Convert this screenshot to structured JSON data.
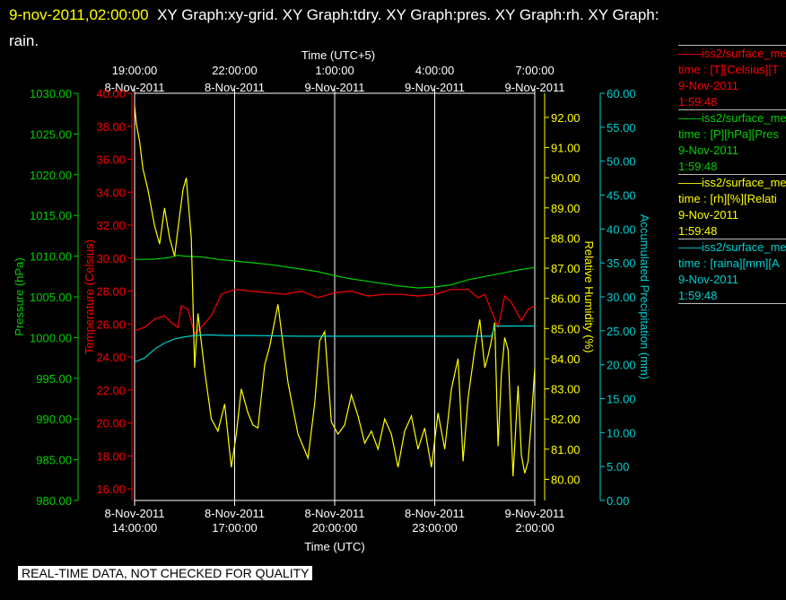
{
  "header": {
    "timestamp": "9-nov-2011,02:00:00",
    "titles": "XY Graph:xy-grid.  XY Graph:tdry.  XY Graph:pres.  XY Graph:rh.  XY Graph:",
    "titles_cont": "rain."
  },
  "colors": {
    "background": "#000000",
    "frame": "#ffffff",
    "temperature": "#ff0000",
    "pressure": "#00d000",
    "humidity": "#ffff00",
    "precip": "#00d0d0"
  },
  "chart_data": {
    "type": "line",
    "top_axis": {
      "title": "Time (UTC+5)",
      "ticks": [
        {
          "l1": "19:00:00",
          "l2": "8-Nov-2011",
          "t": 5
        },
        {
          "l1": "22:00:00",
          "l2": "8-Nov-2011",
          "t": 8
        },
        {
          "l1": "1:00:00",
          "l2": "9-Nov-2011",
          "t": 11
        },
        {
          "l1": "4:00:00",
          "l2": "9-Nov-2011",
          "t": 14
        },
        {
          "l1": "7:00:00",
          "l2": "9-Nov-2011",
          "t": 17
        }
      ]
    },
    "bottom_axis": {
      "title": "Time (UTC)",
      "ticks": [
        {
          "l1": "8-Nov-2011",
          "l2": "14:00:00",
          "t": 0
        },
        {
          "l1": "8-Nov-2011",
          "l2": "17:00:00",
          "t": 3
        },
        {
          "l1": "8-Nov-2011",
          "l2": "20:00:00",
          "t": 6
        },
        {
          "l1": "8-Nov-2011",
          "l2": "23:00:00",
          "t": 9
        },
        {
          "l1": "9-Nov-2011",
          "l2": "2:00:00",
          "t": 12
        }
      ],
      "xlim": [
        0,
        12
      ]
    },
    "axes": {
      "pressure": {
        "label": "Pressure (hPa)",
        "ticks": [
          "1030.00",
          "1025.00",
          "1020.00",
          "1015.00",
          "1010.00",
          "1005.00",
          "1000.00",
          "995.00",
          "990.00",
          "985.00",
          "980.00"
        ],
        "ylim": [
          980,
          1030
        ]
      },
      "temperature": {
        "label": "Temperature (Celsius)",
        "ticks": [
          "40.00",
          "38.00",
          "36.00",
          "34.00",
          "32.00",
          "30.00",
          "28.00",
          "26.00",
          "24.00",
          "22.00",
          "20.00",
          "18.00",
          "16.00"
        ],
        "ylim": [
          15.3,
          40
        ]
      },
      "humidity": {
        "label": "Relative Humidity (%)",
        "ticks": [
          "92.00",
          "91.00",
          "90.00",
          "89.00",
          "88.00",
          "87.00",
          "86.00",
          "85.00",
          "84.00",
          "83.00",
          "82.00",
          "81.00",
          "80.00"
        ],
        "ylim": [
          79.3,
          92.8
        ]
      },
      "precip": {
        "label": "Accumulated Precipitation (mm)",
        "ticks": [
          "60.00",
          "55.00",
          "50.00",
          "45.00",
          "40.00",
          "35.00",
          "30.00",
          "25.00",
          "20.00",
          "15.00",
          "10.00",
          "5.00",
          "0.00"
        ],
        "ylim": [
          0,
          60
        ]
      }
    },
    "series": [
      {
        "name": "pressure",
        "axis": "pressure",
        "x": [
          0,
          0.5,
          1,
          1.3,
          1.5,
          2,
          2.5,
          3,
          3.5,
          4,
          4.5,
          5,
          5.5,
          6,
          6.5,
          7,
          7.5,
          8,
          8.5,
          9,
          9.5,
          10,
          10.5,
          11,
          11.5,
          12
        ],
        "y": [
          1009.6,
          1009.6,
          1009.8,
          1010.1,
          1010,
          1009.9,
          1009.6,
          1009.4,
          1009.2,
          1009,
          1008.7,
          1008.4,
          1008.1,
          1007.6,
          1007.2,
          1006.9,
          1006.6,
          1006.3,
          1006.1,
          1006.2,
          1006.5,
          1007.1,
          1007.5,
          1007.9,
          1008.3,
          1008.6
        ]
      },
      {
        "name": "temperature",
        "axis": "temperature",
        "x": [
          0,
          0.3,
          0.6,
          0.9,
          1.1,
          1.3,
          1.4,
          1.6,
          1.8,
          2,
          2.3,
          2.6,
          3,
          3.5,
          4,
          4.5,
          5,
          5.5,
          6,
          6.5,
          7,
          7.5,
          8,
          8.5,
          9,
          9.5,
          10,
          10.3,
          10.5,
          10.9,
          11.1,
          11.3,
          11.6,
          11.8,
          12
        ],
        "y": [
          25.6,
          25.8,
          26.3,
          26.5,
          26.1,
          25.8,
          27.1,
          26.9,
          25.4,
          25.8,
          26.5,
          27.8,
          28.1,
          28,
          27.9,
          27.8,
          28,
          27.6,
          27.9,
          28,
          27.7,
          27.8,
          27.8,
          27.7,
          27.8,
          28.1,
          28.1,
          27.6,
          27.8,
          25.8,
          27.7,
          27.3,
          26.2,
          26.9,
          27.1
        ]
      },
      {
        "name": "humidity",
        "axis": "humidity",
        "x": [
          0,
          0.05,
          0.15,
          0.25,
          0.4,
          0.5,
          0.6,
          0.75,
          0.9,
          1.05,
          1.2,
          1.3,
          1.45,
          1.55,
          1.6,
          1.7,
          1.8,
          1.9,
          2.1,
          2.3,
          2.5,
          2.7,
          2.9,
          3.05,
          3.2,
          3.4,
          3.55,
          3.7,
          3.9,
          4.05,
          4.3,
          4.6,
          4.9,
          5.2,
          5.4,
          5.55,
          5.7,
          5.9,
          6.1,
          6.3,
          6.5,
          6.7,
          6.9,
          7.1,
          7.3,
          7.5,
          7.7,
          7.9,
          8.1,
          8.3,
          8.5,
          8.7,
          8.9,
          9.1,
          9.3,
          9.5,
          9.7,
          9.85,
          10,
          10.2,
          10.35,
          10.5,
          10.6,
          10.7,
          10.8,
          10.9,
          11.0,
          11.1,
          11.2,
          11.35,
          11.5,
          11.6,
          11.7,
          11.8,
          11.9,
          12
        ],
        "y": [
          92.4,
          91.8,
          91.2,
          90.3,
          89.6,
          89.0,
          88.4,
          87.8,
          89.0,
          88.0,
          87.4,
          88.3,
          89.6,
          90.0,
          89.3,
          88.0,
          83.7,
          85.5,
          83.6,
          82.0,
          81.6,
          82.5,
          80.4,
          81.5,
          83.0,
          82.2,
          81.8,
          81.7,
          83.8,
          84.4,
          85.8,
          83.2,
          81.5,
          80.7,
          82.5,
          84.6,
          84.9,
          81.9,
          81.5,
          81.8,
          82.8,
          82.1,
          81.2,
          81.6,
          81.0,
          82.0,
          81.5,
          80.4,
          81.6,
          82.1,
          81.0,
          81.7,
          80.4,
          82.2,
          81.0,
          83.0,
          84.0,
          80.6,
          82.7,
          84.3,
          85.3,
          83.7,
          84.1,
          84.6,
          85.2,
          81.1,
          83.5,
          84.7,
          84.3,
          80.1,
          83.1,
          80.8,
          80.2,
          80.6,
          82.0,
          83.7
        ]
      },
      {
        "name": "precip",
        "axis": "precip",
        "x": [
          0,
          0.3,
          0.6,
          0.9,
          1.2,
          1.5,
          1.8,
          2.2,
          2.8,
          3.5,
          5,
          6,
          7,
          8,
          9,
          10,
          10.7,
          10.8,
          11,
          11.5,
          12
        ],
        "y": [
          20.4,
          21.0,
          22.3,
          23.2,
          23.8,
          24.1,
          24.3,
          24.4,
          24.3,
          24.3,
          24.2,
          24.2,
          24.2,
          24.2,
          24.2,
          24.2,
          24.2,
          25.7,
          25.7,
          25.7,
          25.7
        ]
      }
    ]
  },
  "legend": [
    {
      "color": "#ff0000",
      "line1": "iss2/surface_me",
      "line2": "time : [T][Celsius][T",
      "line3": "9-Nov-2011",
      "line4": "1:59:48"
    },
    {
      "color": "#00d000",
      "line1": "iss2/surface_me",
      "line2": "time : [P][hPa][Pres",
      "line3": "9-Nov-2011",
      "line4": "1:59:48"
    },
    {
      "color": "#ffff00",
      "line1": "iss2/surface_me",
      "line2": "time : [rh][%][Relati",
      "line3": "9-Nov-2011",
      "line4": "1:59:48"
    },
    {
      "color": "#00d0d0",
      "line1": "iss2/surface_me",
      "line2": "time : [raina][mm][A",
      "line3": "9-Nov-2011",
      "line4": "1:59:48"
    }
  ],
  "footer": {
    "text": "REAL-TIME DATA, NOT CHECKED FOR QUALITY"
  }
}
